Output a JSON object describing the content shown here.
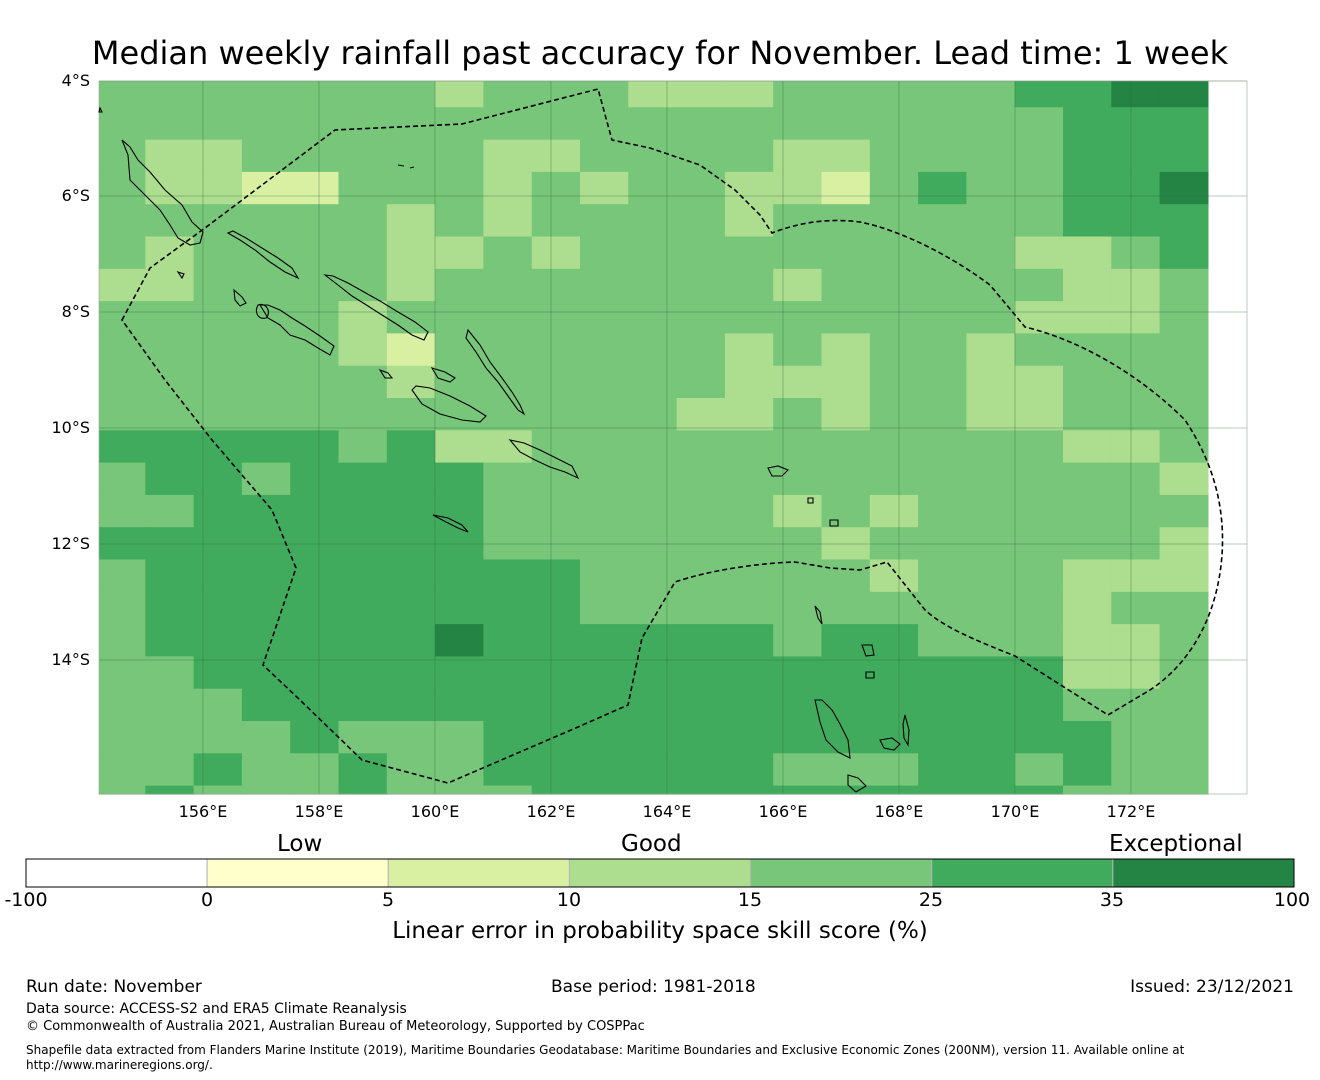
{
  "title": "Median weekly rainfall past accuracy for November. Lead time: 1 week",
  "map": {
    "lat_labels": [
      "4°S",
      "6°S",
      "8°S",
      "10°S",
      "12°S",
      "14°S"
    ],
    "lon_labels": [
      "156°E",
      "158°E",
      "160°E",
      "162°E",
      "164°E",
      "166°E",
      "168°E",
      "170°E",
      "172°E"
    ],
    "colors": [
      "#ffffcc",
      "#d9f0a3",
      "#addd8e",
      "#78c679",
      "#41ab5d",
      "#238443"
    ],
    "grid": [
      "33333332333222333334455",
      "33333333333333333333444",
      "32233333223333223333444",
      "32211333232332213433445",
      "33333323233332333333444",
      "32333322323333333332234",
      "22333323333333233333223",
      "33333233333333333332223",
      "33333213333332323323333",
      "33333323333332223322333",
      "33333333333322323322333",
      "44444342233333333333223",
      "34434444333333333333332",
      "33444444333333232333333",
      "44444444333333323333332",
      "34444444443333332333222",
      "34444444443333333333233",
      "34444445444444344333223",
      "33444444444444444444223",
      "33344444444444444444333",
      "33334333444444444444433",
      "33433433444444333443433",
      "34333433344444444444333",
      "33333333344444444444333",
      "44333333444444444444333"
    ]
  },
  "legend": {
    "category_low": "Low",
    "category_good": "Good",
    "category_exceptional": "Exceptional",
    "colors": [
      "#ffffff",
      "#ffffcc",
      "#d9f0a3",
      "#addd8e",
      "#78c679",
      "#41ab5d",
      "#238443"
    ],
    "ticks": [
      "-100",
      "0",
      "5",
      "10",
      "15",
      "25",
      "35",
      "100"
    ],
    "title": "Linear error in probability space skill score (%)"
  },
  "footer": {
    "run_date": "Run date: November",
    "base_period": "Base period: 1981-2018",
    "issued": "Issued: 23/12/2021",
    "data_source": "Data source: ACCESS-S2 and ERA5 Climate Reanalysis",
    "copyright": "© Commonwealth of Australia 2021, Australian Bureau of Meteorology, Supported by COSPPac",
    "shapefile_line1": "Shapefile data extracted from Flanders Marine Institute (2019), Maritime Boundaries Geodatabase: Maritime Boundaries and Exclusive Economic Zones (200NM), version 11. Available online at",
    "shapefile_line2": "http://www.marineregions.org/."
  }
}
